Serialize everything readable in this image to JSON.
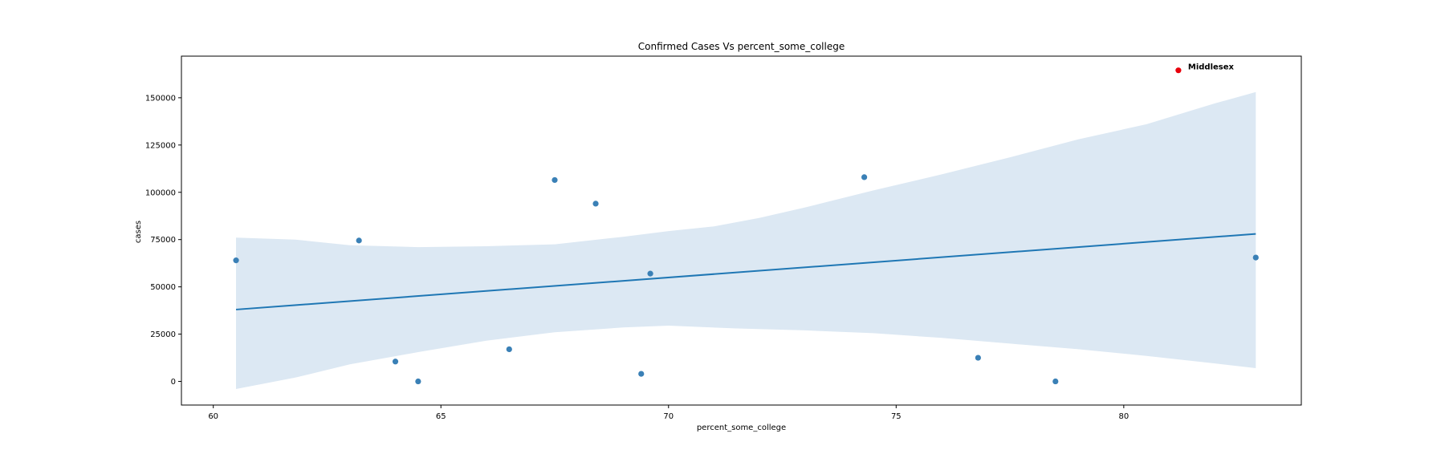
{
  "chart_data": {
    "type": "scatter",
    "title": "Confirmed Cases Vs percent_some_college",
    "xlabel": "percent_some_college",
    "ylabel": "cases",
    "xlim": [
      59.3,
      83.9
    ],
    "ylim": [
      -12500,
      172000
    ],
    "xticks": [
      60,
      65,
      70,
      75,
      80
    ],
    "yticks": [
      0,
      25000,
      50000,
      75000,
      100000,
      125000,
      150000
    ],
    "grid": false,
    "colors": {
      "points": "#3a80b6",
      "regression_line": "#1f77b4",
      "confidence_band": "#dce8f3",
      "highlight": "#e8000b"
    },
    "points": [
      {
        "x": 60.5,
        "y": 64000
      },
      {
        "x": 63.2,
        "y": 74500
      },
      {
        "x": 64.0,
        "y": 10500
      },
      {
        "x": 64.5,
        "y": 0
      },
      {
        "x": 66.5,
        "y": 17000
      },
      {
        "x": 67.5,
        "y": 106500
      },
      {
        "x": 68.4,
        "y": 94000
      },
      {
        "x": 69.4,
        "y": 4000
      },
      {
        "x": 69.6,
        "y": 57000
      },
      {
        "x": 74.3,
        "y": 108000
      },
      {
        "x": 76.8,
        "y": 12500
      },
      {
        "x": 78.5,
        "y": 0
      },
      {
        "x": 82.9,
        "y": 65500
      }
    ],
    "regression_line": [
      {
        "x": 60.5,
        "y": 38000
      },
      {
        "x": 82.9,
        "y": 78000
      }
    ],
    "confidence_band": {
      "upper": [
        {
          "x": 60.5,
          "y": 76000
        },
        {
          "x": 61.8,
          "y": 75000
        },
        {
          "x": 63.0,
          "y": 72000
        },
        {
          "x": 64.5,
          "y": 71000
        },
        {
          "x": 66.0,
          "y": 71500
        },
        {
          "x": 67.5,
          "y": 72500
        },
        {
          "x": 69.0,
          "y": 76500
        },
        {
          "x": 70.0,
          "y": 79500
        },
        {
          "x": 71.0,
          "y": 82000
        },
        {
          "x": 72.0,
          "y": 86500
        },
        {
          "x": 73.0,
          "y": 92000
        },
        {
          "x": 74.5,
          "y": 101000
        },
        {
          "x": 76.0,
          "y": 109500
        },
        {
          "x": 77.5,
          "y": 118500
        },
        {
          "x": 79.0,
          "y": 128000
        },
        {
          "x": 80.5,
          "y": 136000
        },
        {
          "x": 82.0,
          "y": 147000
        },
        {
          "x": 82.9,
          "y": 153000
        }
      ],
      "lower": [
        {
          "x": 60.5,
          "y": -4000
        },
        {
          "x": 61.8,
          "y": 2000
        },
        {
          "x": 63.0,
          "y": 9000
        },
        {
          "x": 64.5,
          "y": 15500
        },
        {
          "x": 66.0,
          "y": 21500
        },
        {
          "x": 67.5,
          "y": 26000
        },
        {
          "x": 69.0,
          "y": 28500
        },
        {
          "x": 70.0,
          "y": 29500
        },
        {
          "x": 71.5,
          "y": 28000
        },
        {
          "x": 73.0,
          "y": 27000
        },
        {
          "x": 74.5,
          "y": 25500
        },
        {
          "x": 76.0,
          "y": 23000
        },
        {
          "x": 77.5,
          "y": 20000
        },
        {
          "x": 79.0,
          "y": 17000
        },
        {
          "x": 80.5,
          "y": 13500
        },
        {
          "x": 82.0,
          "y": 9500
        },
        {
          "x": 82.9,
          "y": 7000
        }
      ]
    },
    "highlight": {
      "x": 81.2,
      "y": 164500,
      "label": "Middlesex"
    }
  }
}
